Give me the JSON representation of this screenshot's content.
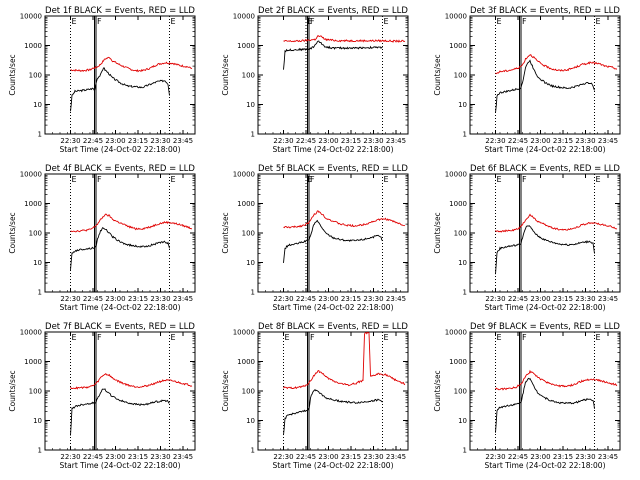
{
  "x_ticks": [
    "22:30",
    "22:45",
    "23:00",
    "23:15",
    "23:30",
    "23:45"
  ],
  "y_ticks": [
    "1",
    "10",
    "100",
    "1000",
    "10000"
  ],
  "ylabel": "Counts/sec",
  "xlabel": "Start Time (24-Oct-02 22:18:00)",
  "marker_labels": [
    "E",
    "F",
    "E"
  ],
  "colors": {
    "events": "#000000",
    "lld": "#e00000"
  },
  "chart_data": [
    {
      "type": "line",
      "title": "Det 1f BLACK = Events, RED = LLD",
      "x_range_min": [
        -5,
        95
      ],
      "ylim": [
        1,
        10000
      ],
      "y_scale": "log",
      "markers_min": [
        12,
        28,
        29,
        78
      ],
      "series": [
        {
          "key": "lld",
          "color": "#e00000",
          "x": [
            12,
            15,
            20,
            25,
            27,
            28,
            29,
            30,
            32,
            35,
            38,
            40,
            45,
            50,
            55,
            60,
            65,
            70,
            75,
            80,
            85,
            90,
            93
          ],
          "y": [
            150,
            145,
            140,
            150,
            170,
            175,
            180,
            190,
            230,
            350,
            400,
            300,
            220,
            170,
            140,
            140,
            170,
            230,
            260,
            250,
            210,
            190,
            165
          ]
        },
        {
          "key": "events",
          "color": "#000000",
          "x": [
            12,
            13,
            15,
            20,
            25,
            27,
            28,
            29,
            30,
            32,
            34,
            35,
            37,
            40,
            45,
            50,
            55,
            60,
            65,
            70,
            75,
            77,
            78
          ],
          "y": [
            6,
            20,
            28,
            30,
            33,
            35,
            30,
            55,
            80,
            100,
            180,
            150,
            120,
            80,
            55,
            42,
            40,
            38,
            48,
            60,
            65,
            50,
            20
          ]
        }
      ]
    },
    {
      "type": "line",
      "title": "Det 2f BLACK = Events, RED = LLD",
      "x_range_min": [
        -5,
        95
      ],
      "ylim": [
        1,
        10000
      ],
      "y_scale": "log",
      "markers_min": [
        27,
        28,
        29,
        78
      ],
      "series": [
        {
          "key": "lld",
          "color": "#e00000",
          "x": [
            12,
            20,
            25,
            28,
            30,
            33,
            35,
            37,
            40,
            45,
            50,
            55,
            60,
            65,
            70,
            75,
            80,
            85,
            90,
            93
          ],
          "y": [
            1400,
            1400,
            1450,
            1500,
            1550,
            1600,
            2100,
            2000,
            1600,
            1500,
            1450,
            1450,
            1450,
            1450,
            1450,
            1450,
            1450,
            1400,
            1400,
            1400
          ]
        },
        {
          "key": "events",
          "color": "#000000",
          "x": [
            12,
            13,
            15,
            20,
            25,
            28,
            29,
            30,
            32,
            35,
            37,
            40,
            45,
            50,
            55,
            60,
            65,
            70,
            75,
            78
          ],
          "y": [
            150,
            650,
            700,
            720,
            740,
            750,
            760,
            780,
            900,
            1400,
            1200,
            900,
            820,
            820,
            820,
            820,
            840,
            850,
            860,
            860
          ]
        }
      ]
    },
    {
      "type": "line",
      "title": "Det 3f BLACK = Events, RED = LLD",
      "x_range_min": [
        -5,
        95
      ],
      "ylim": [
        1,
        10000
      ],
      "y_scale": "log",
      "markers_min": [
        12,
        28,
        29,
        78
      ],
      "series": [
        {
          "key": "lld",
          "color": "#e00000",
          "x": [
            12,
            15,
            20,
            25,
            28,
            29,
            30,
            32,
            35,
            38,
            40,
            45,
            50,
            55,
            60,
            65,
            70,
            75,
            80,
            85,
            90,
            93
          ],
          "y": [
            110,
            130,
            140,
            160,
            180,
            200,
            220,
            350,
            500,
            380,
            290,
            200,
            160,
            140,
            150,
            180,
            230,
            260,
            250,
            200,
            180,
            160
          ]
        },
        {
          "key": "events",
          "color": "#000000",
          "x": [
            12,
            13,
            15,
            20,
            25,
            28,
            29,
            30,
            32,
            34,
            35,
            37,
            40,
            45,
            50,
            55,
            60,
            65,
            70,
            75,
            77,
            78
          ],
          "y": [
            5,
            20,
            25,
            28,
            32,
            35,
            40,
            55,
            180,
            280,
            300,
            180,
            90,
            55,
            42,
            38,
            35,
            40,
            50,
            55,
            45,
            30
          ]
        }
      ]
    },
    {
      "type": "line",
      "title": "Det 4f BLACK = Events, RED = LLD",
      "x_range_min": [
        -5,
        95
      ],
      "ylim": [
        1,
        10000
      ],
      "y_scale": "log",
      "markers_min": [
        12,
        28,
        29,
        78
      ],
      "series": [
        {
          "key": "lld",
          "color": "#e00000",
          "x": [
            12,
            15,
            20,
            25,
            28,
            29,
            30,
            32,
            35,
            38,
            40,
            45,
            50,
            55,
            60,
            65,
            70,
            75,
            80,
            85,
            90,
            93
          ],
          "y": [
            120,
            115,
            120,
            130,
            160,
            180,
            200,
            280,
            420,
            380,
            290,
            220,
            170,
            140,
            140,
            160,
            200,
            230,
            220,
            190,
            160,
            140
          ]
        },
        {
          "key": "events",
          "color": "#000000",
          "x": [
            12,
            13,
            15,
            20,
            25,
            28,
            29,
            30,
            32,
            34,
            35,
            37,
            40,
            45,
            50,
            55,
            60,
            65,
            70,
            75,
            77,
            78
          ],
          "y": [
            6,
            20,
            25,
            28,
            30,
            32,
            35,
            60,
            120,
            150,
            140,
            110,
            75,
            50,
            40,
            36,
            34,
            38,
            45,
            50,
            45,
            30
          ]
        }
      ]
    },
    {
      "type": "line",
      "title": "Det 5f BLACK = Events, RED = LLD",
      "x_range_min": [
        -5,
        95
      ],
      "ylim": [
        1,
        10000
      ],
      "y_scale": "log",
      "markers_min": [
        27,
        28,
        29,
        78
      ],
      "series": [
        {
          "key": "lld",
          "color": "#e00000",
          "x": [
            12,
            15,
            20,
            25,
            28,
            30,
            32,
            35,
            38,
            40,
            45,
            50,
            55,
            60,
            65,
            70,
            75,
            80,
            85,
            90,
            93
          ],
          "y": [
            160,
            155,
            160,
            180,
            210,
            260,
            400,
            550,
            430,
            330,
            250,
            200,
            180,
            175,
            190,
            230,
            280,
            300,
            250,
            200,
            180
          ]
        },
        {
          "key": "events",
          "color": "#000000",
          "x": [
            12,
            13,
            15,
            20,
            25,
            28,
            29,
            30,
            32,
            34,
            35,
            37,
            40,
            45,
            50,
            55,
            60,
            65,
            70,
            75,
            77,
            78
          ],
          "y": [
            10,
            30,
            38,
            42,
            50,
            55,
            60,
            80,
            180,
            260,
            240,
            170,
            100,
            70,
            60,
            55,
            55,
            60,
            70,
            80,
            70,
            55
          ]
        }
      ]
    },
    {
      "type": "line",
      "title": "Det 6f BLACK = Events, RED = LLD",
      "x_range_min": [
        -5,
        95
      ],
      "ylim": [
        1,
        10000
      ],
      "y_scale": "log",
      "markers_min": [
        12,
        28,
        29,
        78
      ],
      "series": [
        {
          "key": "lld",
          "color": "#e00000",
          "x": [
            12,
            15,
            20,
            25,
            28,
            29,
            30,
            32,
            35,
            38,
            40,
            45,
            50,
            55,
            60,
            65,
            70,
            75,
            80,
            85,
            90,
            93
          ],
          "y": [
            120,
            115,
            118,
            125,
            150,
            170,
            190,
            280,
            400,
            320,
            250,
            190,
            150,
            130,
            130,
            150,
            190,
            220,
            210,
            180,
            160,
            140
          ]
        },
        {
          "key": "events",
          "color": "#000000",
          "x": [
            12,
            13,
            15,
            20,
            25,
            28,
            29,
            30,
            32,
            34,
            35,
            37,
            40,
            45,
            50,
            55,
            60,
            65,
            70,
            75,
            77,
            78
          ],
          "y": [
            4,
            22,
            30,
            35,
            38,
            40,
            45,
            70,
            150,
            180,
            160,
            120,
            80,
            58,
            48,
            42,
            40,
            42,
            48,
            52,
            45,
            20
          ]
        }
      ]
    },
    {
      "type": "line",
      "title": "Det 7f BLACK = Events, RED = LLD",
      "x_range_min": [
        -5,
        95
      ],
      "ylim": [
        1,
        10000
      ],
      "y_scale": "log",
      "markers_min": [
        12,
        28,
        29,
        78
      ],
      "series": [
        {
          "key": "lld",
          "color": "#e00000",
          "x": [
            12,
            15,
            20,
            25,
            28,
            29,
            30,
            32,
            35,
            38,
            40,
            45,
            50,
            55,
            60,
            65,
            70,
            75,
            80,
            85,
            90,
            93
          ],
          "y": [
            130,
            125,
            130,
            140,
            160,
            180,
            200,
            280,
            380,
            340,
            270,
            200,
            160,
            140,
            140,
            160,
            200,
            230,
            220,
            190,
            165,
            150
          ]
        },
        {
          "key": "events",
          "color": "#000000",
          "x": [
            12,
            13,
            15,
            20,
            25,
            28,
            29,
            30,
            32,
            34,
            35,
            37,
            40,
            45,
            50,
            55,
            60,
            65,
            70,
            75,
            77,
            78
          ],
          "y": [
            3,
            25,
            30,
            35,
            38,
            40,
            42,
            55,
            90,
            120,
            110,
            90,
            65,
            48,
            40,
            36,
            34,
            38,
            44,
            48,
            44,
            40
          ]
        }
      ]
    },
    {
      "type": "line",
      "title": "Det 8f BLACK = Events, RED = LLD",
      "x_range_min": [
        -5,
        95
      ],
      "ylim": [
        1,
        10000
      ],
      "y_scale": "log",
      "markers_min": [
        12,
        28,
        29,
        78
      ],
      "series": [
        {
          "key": "lld",
          "color": "#e00000",
          "x": [
            12,
            15,
            20,
            25,
            28,
            29,
            30,
            32,
            35,
            38,
            40,
            45,
            50,
            55,
            60,
            65,
            66,
            67,
            68,
            69,
            70,
            75,
            80,
            85,
            90,
            93
          ],
          "y": [
            130,
            125,
            130,
            140,
            170,
            190,
            220,
            320,
            480,
            400,
            300,
            220,
            180,
            160,
            180,
            230,
            9000,
            9000,
            9000,
            9000,
            300,
            380,
            360,
            260,
            200,
            170
          ]
        },
        {
          "key": "events",
          "color": "#000000",
          "x": [
            12,
            13,
            15,
            20,
            25,
            28,
            29,
            30,
            32,
            34,
            35,
            37,
            40,
            45,
            50,
            55,
            60,
            65,
            70,
            75,
            77,
            78
          ],
          "y": [
            3,
            12,
            15,
            18,
            20,
            22,
            25,
            60,
            100,
            110,
            100,
            80,
            60,
            50,
            45,
            42,
            40,
            42,
            46,
            50,
            46,
            42
          ]
        }
      ]
    },
    {
      "type": "line",
      "title": "Det 9f BLACK = Events, RED = LLD",
      "x_range_min": [
        -5,
        95
      ],
      "ylim": [
        1,
        10000
      ],
      "y_scale": "log",
      "markers_min": [
        12,
        28,
        29,
        78
      ],
      "series": [
        {
          "key": "lld",
          "color": "#e00000",
          "x": [
            12,
            15,
            20,
            25,
            28,
            29,
            30,
            32,
            35,
            38,
            40,
            45,
            50,
            55,
            60,
            65,
            70,
            75,
            80,
            85,
            90,
            93
          ],
          "y": [
            120,
            115,
            120,
            130,
            160,
            180,
            210,
            330,
            450,
            380,
            290,
            210,
            170,
            145,
            145,
            170,
            220,
            250,
            240,
            200,
            175,
            160
          ]
        },
        {
          "key": "events",
          "color": "#000000",
          "x": [
            12,
            13,
            15,
            20,
            25,
            28,
            29,
            30,
            32,
            34,
            35,
            37,
            40,
            45,
            50,
            55,
            60,
            65,
            70,
            75,
            77,
            78
          ],
          "y": [
            4,
            22,
            28,
            32,
            35,
            38,
            42,
            70,
            200,
            280,
            260,
            160,
            90,
            58,
            45,
            40,
            38,
            40,
            48,
            55,
            48,
            25
          ]
        }
      ]
    }
  ]
}
